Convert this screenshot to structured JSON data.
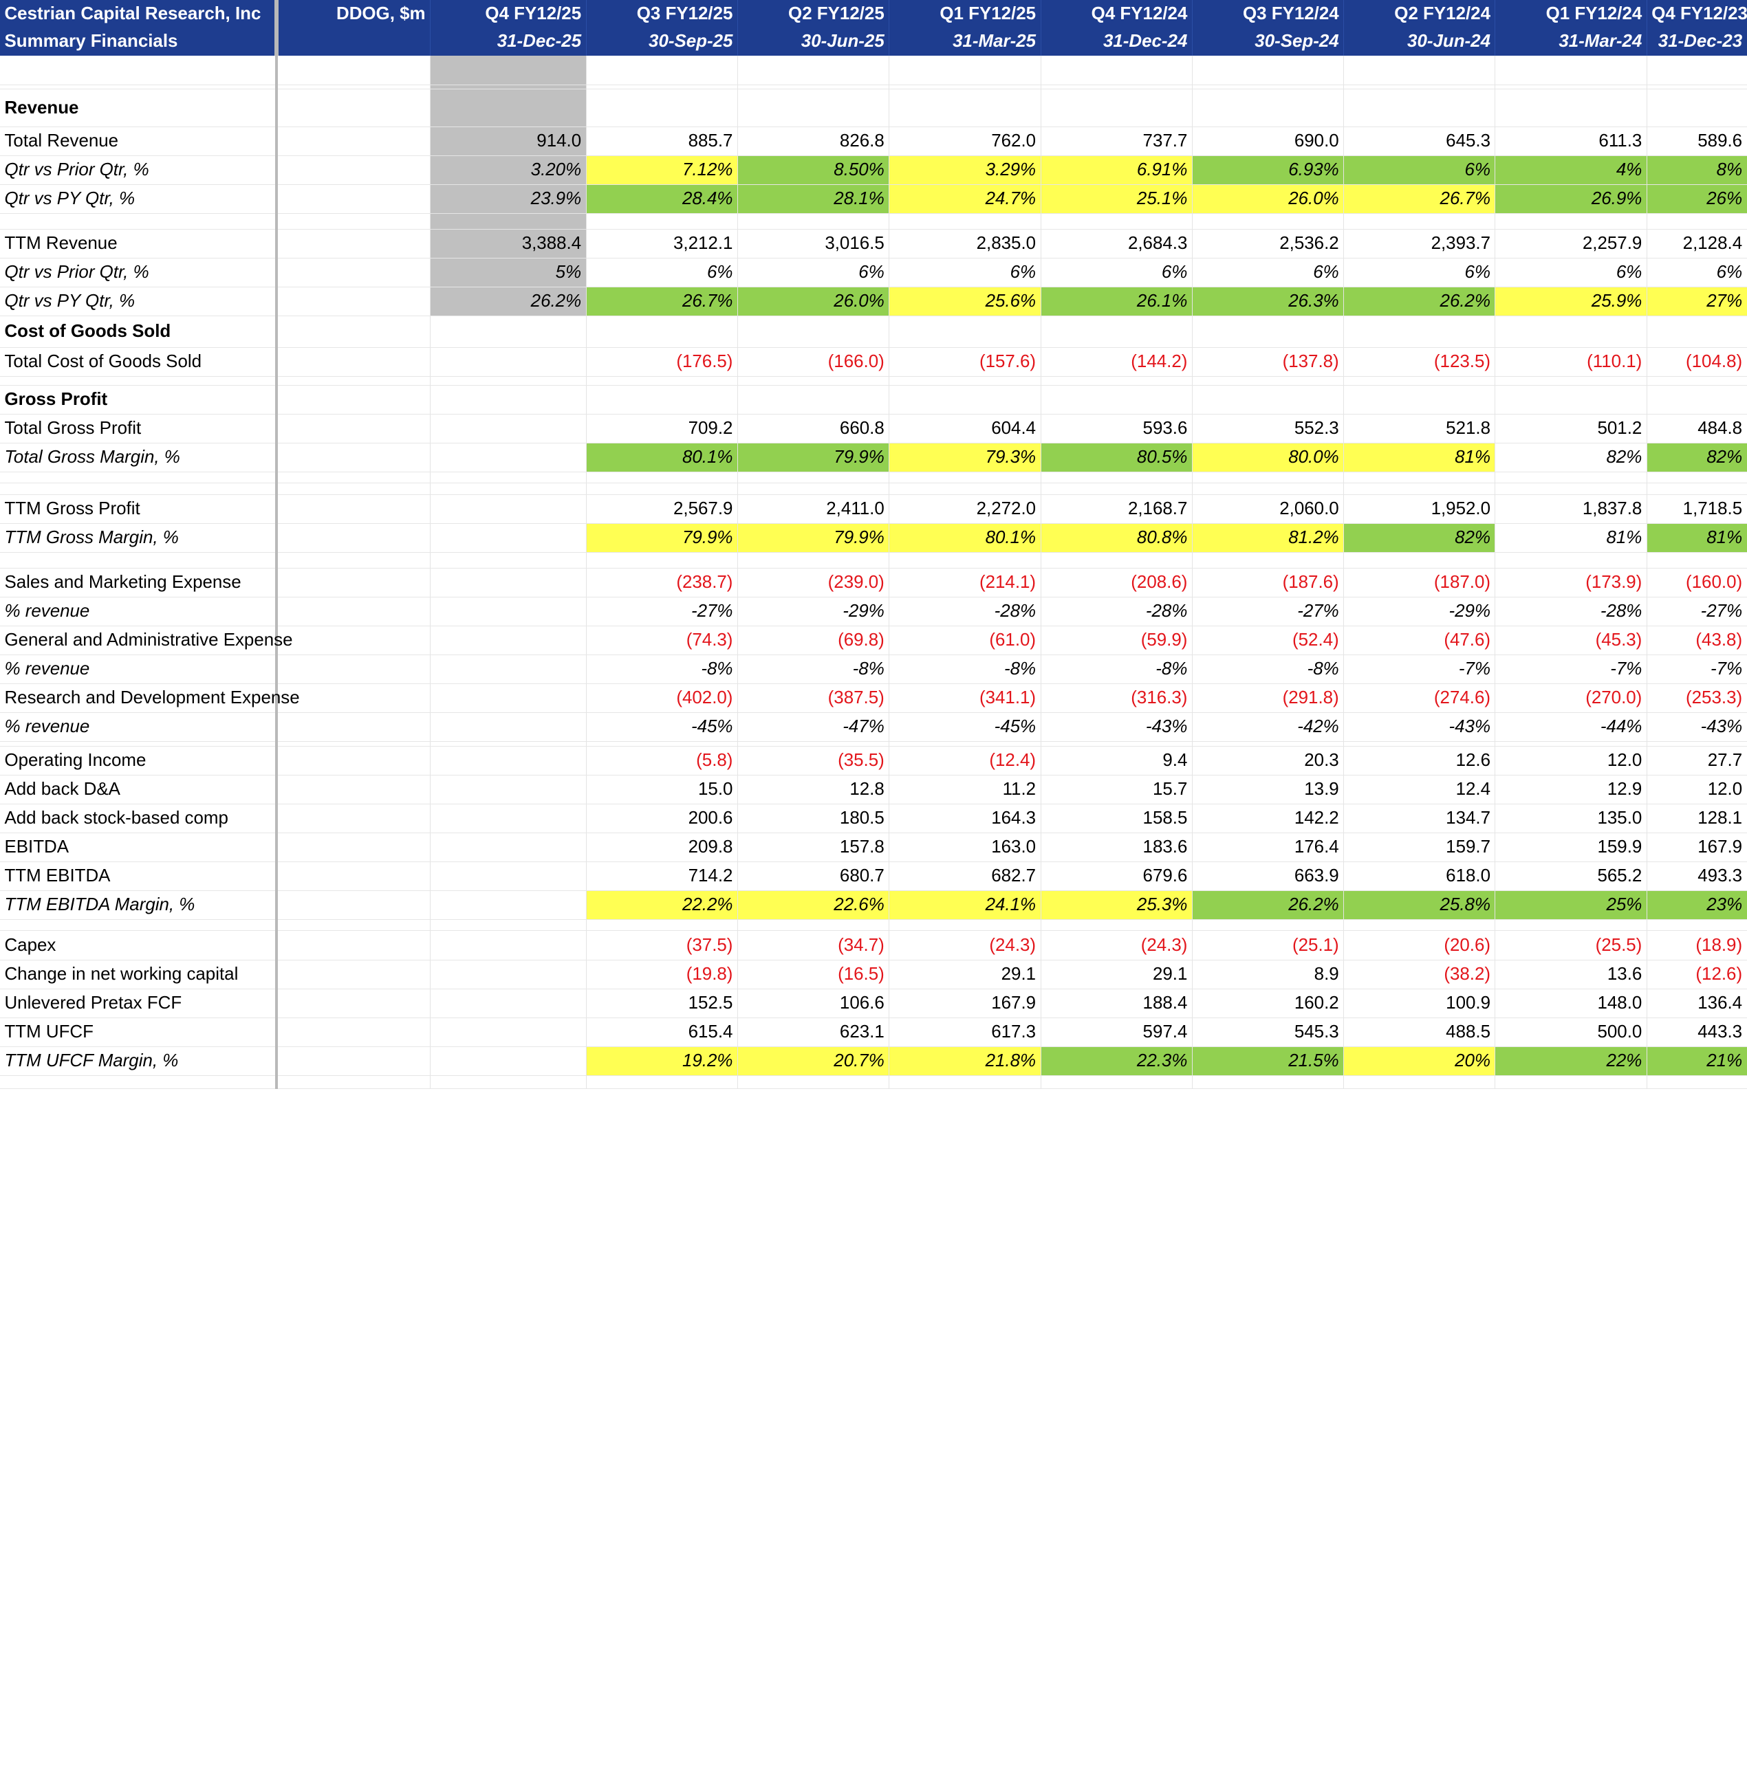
{
  "header": {
    "company": "Cestrian Capital Research, Inc",
    "subtitle": "Summary Financials",
    "ticker": "DDOG, $m",
    "periods": [
      {
        "q": "Q4 FY12/25",
        "d": "31-Dec-25"
      },
      {
        "q": "Q3 FY12/25",
        "d": "30-Sep-25"
      },
      {
        "q": "Q2 FY12/25",
        "d": "30-Jun-25"
      },
      {
        "q": "Q1 FY12/25",
        "d": "31-Mar-25"
      },
      {
        "q": "Q4 FY12/24",
        "d": "31-Dec-24"
      },
      {
        "q": "Q3 FY12/24",
        "d": "30-Sep-24"
      },
      {
        "q": "Q2 FY12/24",
        "d": "30-Jun-24"
      },
      {
        "q": "Q1 FY12/24",
        "d": "31-Mar-24"
      },
      {
        "q": "Q4 FY12/23",
        "d": "31-Dec-23"
      }
    ]
  },
  "colors": {
    "header_bg": "#1e3d8f",
    "green": "#92d050",
    "yellow": "#ffff53",
    "negative": "#e3151b",
    "forecast_grey": "#c0c0c0"
  },
  "rows": [
    {
      "type": "blank",
      "h": 26
    },
    {
      "type": "blank",
      "h": 4,
      "thick": true
    },
    {
      "type": "section",
      "label": "Revenue",
      "h": 34,
      "underline": true
    },
    {
      "type": "data",
      "label": "Total Revenue",
      "values": [
        "914.0",
        "885.7",
        "826.8",
        "762.0",
        "737.7",
        "690.0",
        "645.3",
        "611.3",
        "589.6"
      ],
      "colors": [
        "",
        "",
        "",
        "",
        "",
        "",
        "",
        "",
        ""
      ],
      "h": 26
    },
    {
      "type": "data",
      "label": "Qtr vs Prior Qtr, %",
      "italic": true,
      "values": [
        "3.20%",
        "7.12%",
        "8.50%",
        "3.29%",
        "6.91%",
        "6.93%",
        "6%",
        "4%",
        "8%"
      ],
      "colors": [
        "",
        "y",
        "g",
        "y",
        "y",
        "g",
        "g",
        "g",
        "g"
      ],
      "h": 26
    },
    {
      "type": "data",
      "label": "Qtr vs PY Qtr, %",
      "italic": true,
      "values": [
        "23.9%",
        "28.4%",
        "28.1%",
        "24.7%",
        "25.1%",
        "26.0%",
        "26.7%",
        "26.9%",
        "26%"
      ],
      "colors": [
        "",
        "g",
        "g",
        "y",
        "y",
        "y",
        "y",
        "g",
        "g"
      ],
      "h": 26
    },
    {
      "type": "blank",
      "h": 14
    },
    {
      "type": "data",
      "label": "TTM Revenue",
      "values": [
        "3,388.4",
        "3,212.1",
        "3,016.5",
        "2,835.0",
        "2,684.3",
        "2,536.2",
        "2,393.7",
        "2,257.9",
        "2,128.4"
      ],
      "colors": [
        "",
        "",
        "",
        "",
        "",
        "",
        "",
        "",
        ""
      ],
      "h": 26
    },
    {
      "type": "data",
      "label": "Qtr vs Prior Qtr, %",
      "italic": true,
      "values": [
        "5%",
        "6%",
        "6%",
        "6%",
        "6%",
        "6%",
        "6%",
        "6%",
        "6%"
      ],
      "colors": [
        "",
        "",
        "",
        "",
        "",
        "",
        "",
        "",
        ""
      ],
      "h": 26
    },
    {
      "type": "data",
      "label": "Qtr vs PY Qtr, %",
      "italic": true,
      "values": [
        "26.2%",
        "26.7%",
        "26.0%",
        "25.6%",
        "26.1%",
        "26.3%",
        "26.2%",
        "25.9%",
        "27%"
      ],
      "colors": [
        "",
        "g",
        "g",
        "y",
        "g",
        "g",
        "g",
        "y",
        "y"
      ],
      "h": 26
    },
    {
      "type": "section",
      "label": "Cost of Goods Sold",
      "h": 28
    },
    {
      "type": "data",
      "label": "Total Cost of Goods Sold",
      "values": [
        "",
        "(176.5)",
        "(166.0)",
        "(157.6)",
        "(144.2)",
        "(137.8)",
        "(123.5)",
        "(110.1)",
        "(104.8)"
      ],
      "colors": [
        "",
        "",
        "",
        "",
        "",
        "",
        "",
        "",
        ""
      ],
      "h": 26
    },
    {
      "type": "blank",
      "h": 8
    },
    {
      "type": "section",
      "label": "Gross Profit",
      "h": 26
    },
    {
      "type": "data",
      "label": "Total Gross Profit",
      "values": [
        "",
        "709.2",
        "660.8",
        "604.4",
        "593.6",
        "552.3",
        "521.8",
        "501.2",
        "484.8"
      ],
      "colors": [
        "",
        "",
        "",
        "",
        "",
        "",
        "",
        "",
        ""
      ],
      "h": 26
    },
    {
      "type": "data",
      "label": "Total Gross Margin, %",
      "italic": true,
      "values": [
        "",
        "80.1%",
        "79.9%",
        "79.3%",
        "80.5%",
        "80.0%",
        "81%",
        "82%",
        "82%"
      ],
      "colors": [
        "",
        "g",
        "g",
        "y",
        "g",
        "y",
        "y",
        "",
        "g"
      ],
      "h": 26
    },
    {
      "type": "blank",
      "h": 10
    },
    {
      "type": "blank",
      "h": 10
    },
    {
      "type": "data",
      "label": "TTM Gross Profit",
      "values": [
        "",
        "2,567.9",
        "2,411.0",
        "2,272.0",
        "2,168.7",
        "2,060.0",
        "1,952.0",
        "1,837.8",
        "1,718.5"
      ],
      "colors": [
        "",
        "",
        "",
        "",
        "",
        "",
        "",
        "",
        ""
      ],
      "h": 26
    },
    {
      "type": "data",
      "label": "TTM Gross Margin, %",
      "italic": true,
      "values": [
        "",
        "79.9%",
        "79.9%",
        "80.1%",
        "80.8%",
        "81.2%",
        "82%",
        "81%",
        "81%"
      ],
      "colors": [
        "",
        "y",
        "y",
        "y",
        "y",
        "y",
        "g",
        "",
        "g"
      ],
      "h": 26
    },
    {
      "type": "blank",
      "h": 14
    },
    {
      "type": "data",
      "label": "Sales and Marketing Expense",
      "values": [
        "",
        "(238.7)",
        "(239.0)",
        "(214.1)",
        "(208.6)",
        "(187.6)",
        "(187.0)",
        "(173.9)",
        "(160.0)"
      ],
      "colors": [
        "",
        "",
        "",
        "",
        "",
        "",
        "",
        "",
        ""
      ],
      "h": 26
    },
    {
      "type": "data",
      "label": "% revenue",
      "italic": true,
      "values": [
        "",
        "-27%",
        "-29%",
        "-28%",
        "-28%",
        "-27%",
        "-29%",
        "-28%",
        "-27%"
      ],
      "colors": [
        "",
        "",
        "",
        "",
        "",
        "",
        "",
        "",
        ""
      ],
      "h": 26
    },
    {
      "type": "data",
      "label": "General and Administrative Expense",
      "values": [
        "",
        "(74.3)",
        "(69.8)",
        "(61.0)",
        "(59.9)",
        "(52.4)",
        "(47.6)",
        "(45.3)",
        "(43.8)"
      ],
      "colors": [
        "",
        "",
        "",
        "",
        "",
        "",
        "",
        "",
        ""
      ],
      "h": 26
    },
    {
      "type": "data",
      "label": "% revenue",
      "italic": true,
      "values": [
        "",
        "-8%",
        "-8%",
        "-8%",
        "-8%",
        "-8%",
        "-7%",
        "-7%",
        "-7%"
      ],
      "colors": [
        "",
        "",
        "",
        "",
        "",
        "",
        "",
        "",
        ""
      ],
      "h": 26
    },
    {
      "type": "data",
      "label": "Research and Development Expense",
      "values": [
        "",
        "(402.0)",
        "(387.5)",
        "(341.1)",
        "(316.3)",
        "(291.8)",
        "(274.6)",
        "(270.0)",
        "(253.3)"
      ],
      "colors": [
        "",
        "",
        "",
        "",
        "",
        "",
        "",
        "",
        ""
      ],
      "h": 26
    },
    {
      "type": "data",
      "label": "% revenue",
      "italic": true,
      "values": [
        "",
        "-45%",
        "-47%",
        "-45%",
        "-43%",
        "-42%",
        "-43%",
        "-44%",
        "-43%"
      ],
      "colors": [
        "",
        "",
        "",
        "",
        "",
        "",
        "",
        "",
        ""
      ],
      "h": 26
    },
    {
      "type": "blank",
      "h": 4
    },
    {
      "type": "data",
      "label": "Operating Income",
      "values": [
        "",
        "(5.8)",
        "(35.5)",
        "(12.4)",
        "9.4",
        "20.3",
        "12.6",
        "12.0",
        "27.7"
      ],
      "colors": [
        "",
        "",
        "",
        "",
        "",
        "",
        "",
        "",
        ""
      ],
      "h": 26
    },
    {
      "type": "data",
      "label": "Add back D&A",
      "values": [
        "",
        "15.0",
        "12.8",
        "11.2",
        "15.7",
        "13.9",
        "12.4",
        "12.9",
        "12.0"
      ],
      "colors": [
        "",
        "",
        "",
        "",
        "",
        "",
        "",
        "",
        ""
      ],
      "h": 26
    },
    {
      "type": "data",
      "label": "Add back stock-based comp",
      "values": [
        "",
        "200.6",
        "180.5",
        "164.3",
        "158.5",
        "142.2",
        "134.7",
        "135.0",
        "128.1"
      ],
      "colors": [
        "",
        "",
        "",
        "",
        "",
        "",
        "",
        "",
        ""
      ],
      "h": 26,
      "underline": true
    },
    {
      "type": "data",
      "label": "EBITDA",
      "values": [
        "",
        "209.8",
        "157.8",
        "163.0",
        "183.6",
        "176.4",
        "159.7",
        "159.9",
        "167.9"
      ],
      "colors": [
        "",
        "",
        "",
        "",
        "",
        "",
        "",
        "",
        ""
      ],
      "h": 26
    },
    {
      "type": "data",
      "label": "TTM EBITDA",
      "values": [
        "",
        "714.2",
        "680.7",
        "682.7",
        "679.6",
        "663.9",
        "618.0",
        "565.2",
        "493.3"
      ],
      "colors": [
        "",
        "",
        "",
        "",
        "",
        "",
        "",
        "",
        ""
      ],
      "h": 26
    },
    {
      "type": "data",
      "label": "TTM EBITDA Margin, %",
      "italic": true,
      "values": [
        "",
        "22.2%",
        "22.6%",
        "24.1%",
        "25.3%",
        "26.2%",
        "25.8%",
        "25%",
        "23%"
      ],
      "colors": [
        "",
        "y",
        "y",
        "y",
        "y",
        "g",
        "g",
        "g",
        "g"
      ],
      "h": 26
    },
    {
      "type": "blank",
      "h": 10
    },
    {
      "type": "data",
      "label": "Capex",
      "values": [
        "",
        "(37.5)",
        "(34.7)",
        "(24.3)",
        "(24.3)",
        "(25.1)",
        "(20.6)",
        "(25.5)",
        "(18.9)"
      ],
      "colors": [
        "",
        "",
        "",
        "",
        "",
        "",
        "",
        "",
        ""
      ],
      "h": 26
    },
    {
      "type": "data",
      "label": "Change in net working capital",
      "values": [
        "",
        "(19.8)",
        "(16.5)",
        "29.1",
        "29.1",
        "8.9",
        "(38.2)",
        "13.6",
        "(12.6)"
      ],
      "colors": [
        "",
        "",
        "",
        "",
        "",
        "",
        "",
        "",
        ""
      ],
      "h": 26,
      "underline": true
    },
    {
      "type": "data",
      "label": "Unlevered Pretax FCF",
      "values": [
        "",
        "152.5",
        "106.6",
        "167.9",
        "188.4",
        "160.2",
        "100.9",
        "148.0",
        "136.4"
      ],
      "colors": [
        "",
        "",
        "",
        "",
        "",
        "",
        "",
        "",
        ""
      ],
      "h": 26
    },
    {
      "type": "data",
      "label": "TTM UFCF",
      "values": [
        "",
        "615.4",
        "623.1",
        "617.3",
        "597.4",
        "545.3",
        "488.5",
        "500.0",
        "443.3"
      ],
      "colors": [
        "",
        "",
        "",
        "",
        "",
        "",
        "",
        "",
        ""
      ],
      "h": 26
    },
    {
      "type": "data",
      "label": "TTM UFCF Margin, %",
      "italic": true,
      "values": [
        "",
        "19.2%",
        "20.7%",
        "21.8%",
        "22.3%",
        "21.5%",
        "20%",
        "22%",
        "21%"
      ],
      "colors": [
        "",
        "y",
        "y",
        "y",
        "g",
        "g",
        "y",
        "g",
        "g"
      ],
      "h": 26
    },
    {
      "type": "blank",
      "h": 12
    }
  ]
}
